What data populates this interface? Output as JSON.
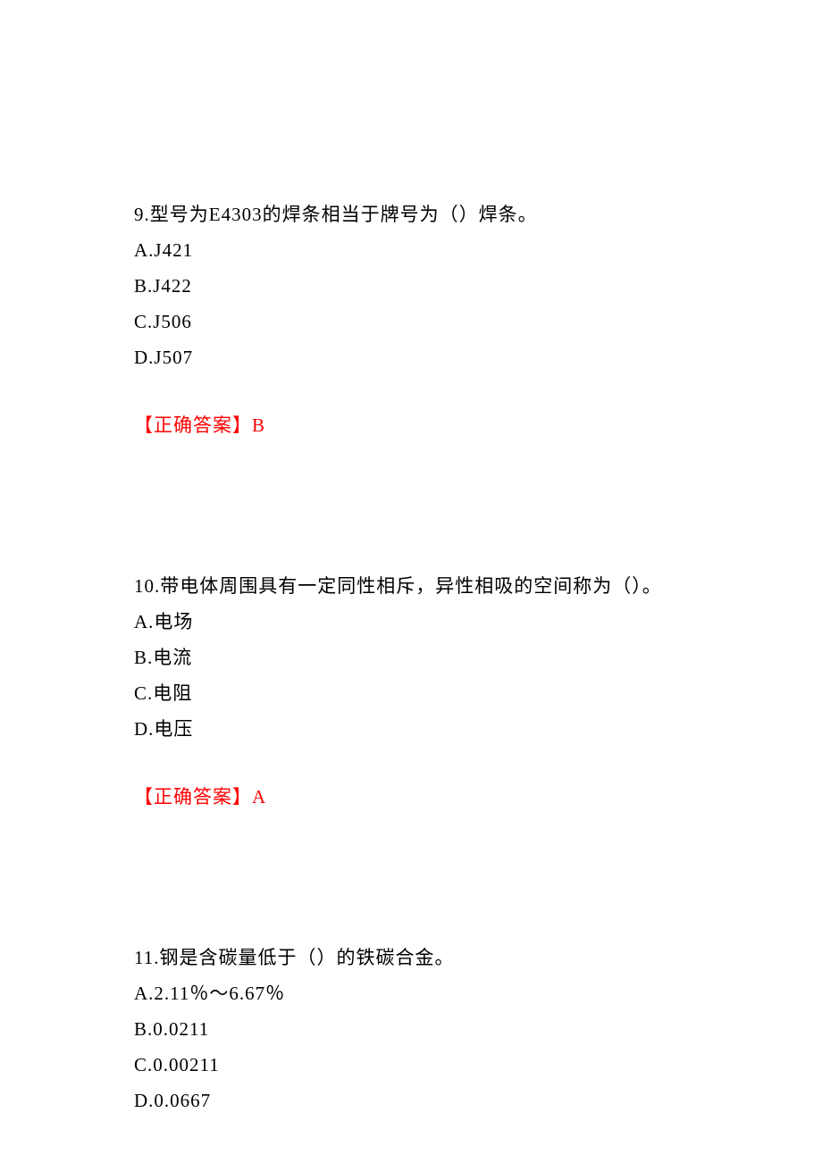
{
  "page": {
    "background_color": "#ffffff",
    "text_color": "#000000",
    "answer_color": "#ff0000",
    "font_family": "SimSun",
    "font_size_pt": 16
  },
  "questions": [
    {
      "number": "9",
      "stem": "9.型号为E4303的焊条相当于牌号为（）焊条。",
      "options": [
        {
          "letter": "A",
          "text": "A.J421"
        },
        {
          "letter": "B",
          "text": "B.J422"
        },
        {
          "letter": "C",
          "text": "C.J506"
        },
        {
          "letter": "D",
          "text": "D.J507"
        }
      ],
      "answer_label": "【正确答案】",
      "answer_value": "B"
    },
    {
      "number": "10",
      "stem": "10.带电体周围具有一定同性相斥，异性相吸的空间称为（）。",
      "options": [
        {
          "letter": "A",
          "text": "A.电场"
        },
        {
          "letter": "B",
          "text": "B.电流"
        },
        {
          "letter": "C",
          "text": "C.电阻"
        },
        {
          "letter": "D",
          "text": "D.电压"
        }
      ],
      "answer_label": "【正确答案】",
      "answer_value": "A"
    },
    {
      "number": "11",
      "stem": "11.钢是含碳量低于（）的铁碳合金。",
      "options": [
        {
          "letter": "A",
          "text": "A.2.11％～6.67％"
        },
        {
          "letter": "B",
          "text": "B.0.0211"
        },
        {
          "letter": "C",
          "text": "C.0.00211"
        },
        {
          "letter": "D",
          "text": "D.0.0667"
        }
      ],
      "answer_label": "",
      "answer_value": ""
    }
  ]
}
